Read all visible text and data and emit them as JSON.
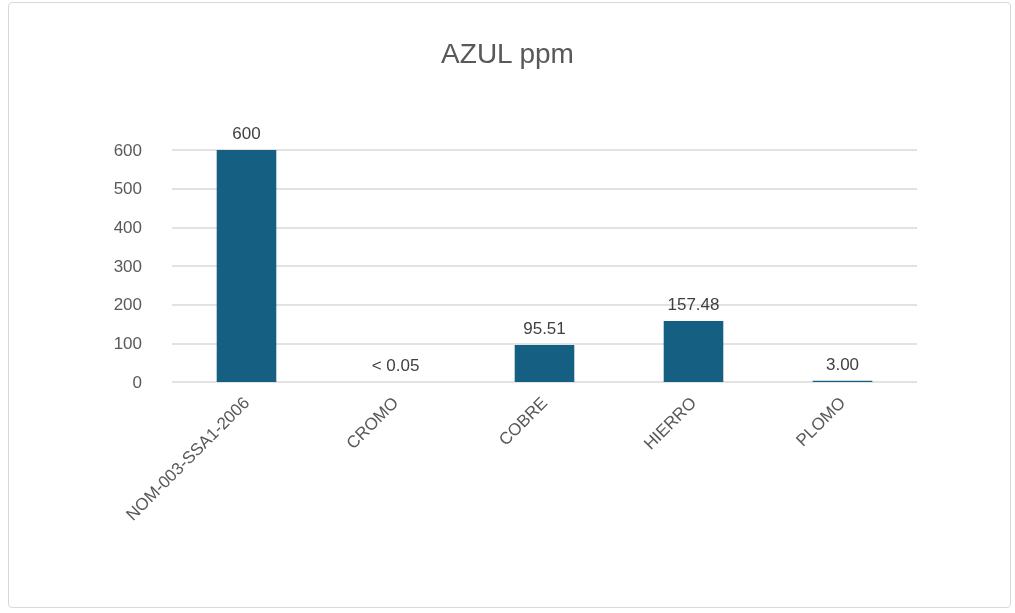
{
  "chart_data": {
    "type": "bar",
    "title": "AZUL ppm",
    "categories": [
      "NOM-003-SSA1-2006",
      "CROMO",
      "COBRE",
      "HIERRO",
      "PLOMO"
    ],
    "values": [
      600,
      0.05,
      95.51,
      157.48,
      3.0
    ],
    "value_labels": [
      "600",
      "< 0.05",
      "95.51",
      "157.48",
      "3.00"
    ],
    "color": "#156082",
    "ylim": [
      0,
      600
    ],
    "yticks": [
      0,
      100,
      200,
      300,
      400,
      500,
      600
    ],
    "grid": "y"
  }
}
